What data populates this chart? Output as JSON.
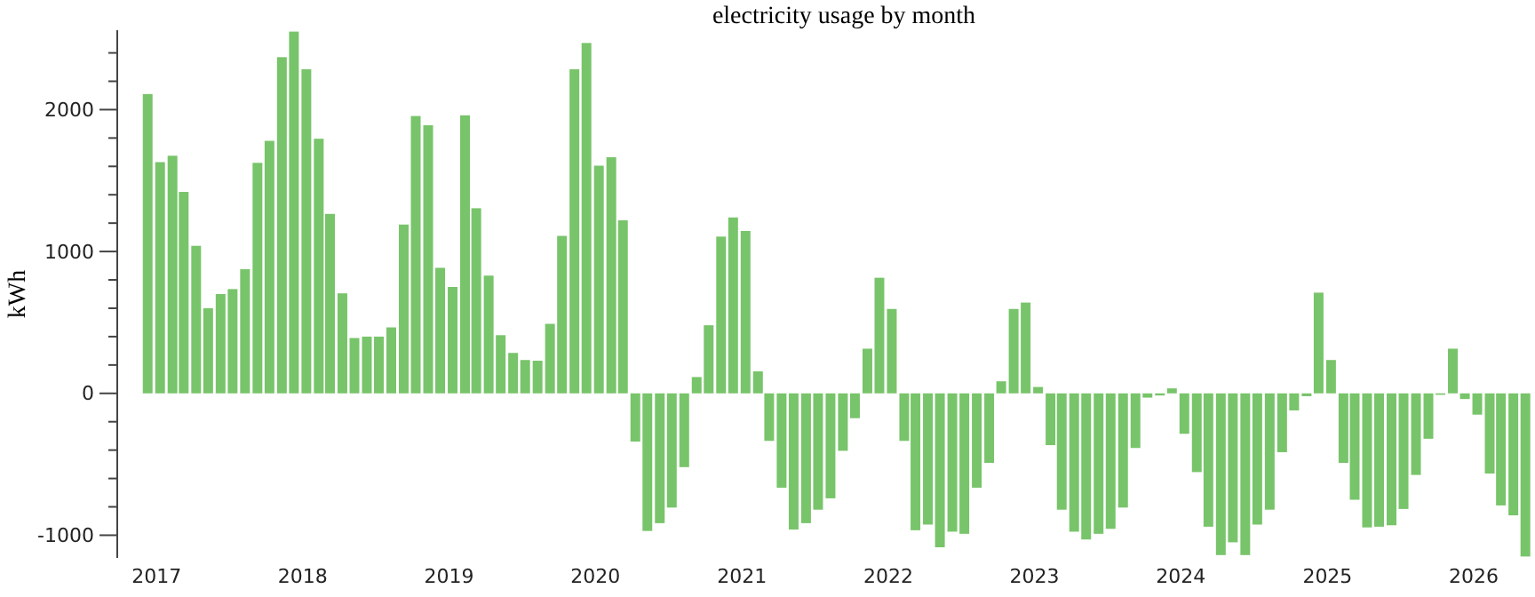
{
  "chart_data": {
    "type": "bar",
    "title": "electricity usage by month",
    "ylabel": "kWh",
    "color": "#78c46a",
    "x": [
      "2016-12",
      "2017-01",
      "2017-02",
      "2017-03",
      "2017-04",
      "2017-05",
      "2017-06",
      "2017-07",
      "2017-08",
      "2017-09",
      "2017-10",
      "2017-11",
      "2017-12",
      "2018-01",
      "2018-02",
      "2018-03",
      "2018-04",
      "2018-05",
      "2018-06",
      "2018-07",
      "2018-08",
      "2018-09",
      "2018-10",
      "2018-11",
      "2018-12",
      "2019-01",
      "2019-02",
      "2019-03",
      "2019-04",
      "2019-05",
      "2019-06",
      "2019-07",
      "2019-08",
      "2019-09",
      "2019-10",
      "2019-11",
      "2019-12",
      "2020-01",
      "2020-02",
      "2020-03",
      "2020-04",
      "2020-05",
      "2020-06",
      "2020-07",
      "2020-08",
      "2020-09",
      "2020-10",
      "2020-11",
      "2020-12",
      "2021-01",
      "2021-02",
      "2021-03",
      "2021-04",
      "2021-05",
      "2021-06",
      "2021-07",
      "2021-08",
      "2021-09",
      "2021-10",
      "2021-11",
      "2021-12",
      "2022-01",
      "2022-02",
      "2022-03",
      "2022-04",
      "2022-05",
      "2022-06",
      "2022-07",
      "2022-08",
      "2022-09",
      "2022-10",
      "2022-11",
      "2022-12",
      "2023-01",
      "2023-02",
      "2023-03",
      "2023-04",
      "2023-05",
      "2023-06",
      "2023-07",
      "2023-08",
      "2023-09",
      "2023-10",
      "2023-11",
      "2023-12",
      "2024-01",
      "2024-02",
      "2024-03",
      "2024-04",
      "2024-05",
      "2024-06",
      "2024-07",
      "2024-08",
      "2024-09",
      "2024-10",
      "2024-11",
      "2024-12",
      "2025-01",
      "2025-02",
      "2025-03",
      "2025-04",
      "2025-05",
      "2025-06",
      "2025-07",
      "2025-08",
      "2025-09",
      "2025-10",
      "2025-11",
      "2025-12",
      "2026-01",
      "2026-02",
      "2026-03",
      "2026-04",
      "2026-05"
    ],
    "values": [
      2110,
      1630,
      1675,
      1420,
      1040,
      600,
      700,
      735,
      875,
      1625,
      1780,
      2370,
      2550,
      2285,
      1795,
      1265,
      705,
      390,
      400,
      400,
      465,
      1190,
      1955,
      1890,
      885,
      750,
      1960,
      1305,
      830,
      410,
      285,
      235,
      230,
      490,
      1110,
      2285,
      2470,
      1605,
      1665,
      1220,
      -340,
      -970,
      -915,
      -805,
      -520,
      115,
      480,
      1105,
      1240,
      1145,
      155,
      -335,
      -665,
      -960,
      -915,
      -820,
      -740,
      -405,
      -175,
      315,
      815,
      595,
      -335,
      -965,
      -925,
      -1085,
      -975,
      -990,
      -665,
      -490,
      85,
      595,
      640,
      45,
      -365,
      -820,
      -975,
      -1030,
      -990,
      -955,
      -805,
      -385,
      -30,
      -15,
      35,
      -285,
      -555,
      -940,
      -1140,
      -1050,
      -1140,
      -925,
      -820,
      -415,
      -120,
      -20,
      710,
      235,
      -490,
      -750,
      -945,
      -940,
      -930,
      -815,
      -575,
      -320,
      -10,
      315,
      -40,
      -150,
      -565,
      -790,
      -860,
      -1150
    ],
    "xlim": [
      "2016-09-25",
      "2026-05-25"
    ],
    "xticks": [
      "2017",
      "2018",
      "2019",
      "2020",
      "2021",
      "2022",
      "2023",
      "2024",
      "2025",
      "2026"
    ],
    "ylim": [
      -1160,
      2560
    ],
    "yticks": [
      -1000,
      {
        "value": -800,
        "label": null
      },
      {
        "value": -600,
        "label": null
      },
      {
        "value": -400,
        "label": null
      },
      {
        "value": -200,
        "label": null
      },
      0,
      {
        "value": 200,
        "label": null
      },
      {
        "value": 400,
        "label": null
      },
      {
        "value": 600,
        "label": null
      },
      {
        "value": 800,
        "label": null
      },
      1000,
      {
        "value": 1200,
        "label": null
      },
      {
        "value": 1400,
        "label": null
      },
      {
        "value": 1600,
        "label": null
      },
      {
        "value": 1800,
        "label": null
      },
      2000,
      {
        "value": 2200,
        "label": null
      },
      {
        "value": 2400,
        "label": null
      }
    ]
  }
}
